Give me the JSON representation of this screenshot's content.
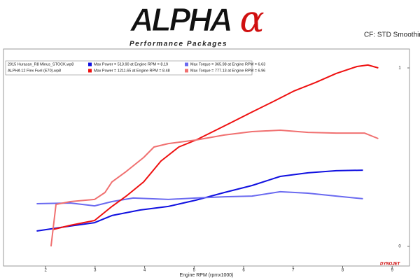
{
  "logo": {
    "text": "ALPHA",
    "symbol": "α",
    "tagline": "Performance Packages"
  },
  "note": "CF: STD Smoothin",
  "brand": "DYNOJET",
  "chart_data": {
    "type": "line",
    "x_label": "Engine RPM (rpmx1000)",
    "xlim": [
      1.15,
      9.35
    ],
    "xticks": [
      2,
      3,
      4,
      5,
      6,
      7,
      8,
      9
    ],
    "ylim": [
      -0.11,
      1.106
    ],
    "yticks": [
      0,
      1
    ],
    "runs": [
      "2015 Huracan_R8 Minus_STOCK.wp8",
      "ALPHA 12 Flex Fuel (E70).wp8"
    ],
    "series": [
      {
        "name": "Max Power = 513.90 at Engine RPM = 8.19",
        "run": 0,
        "color": "#1010e0",
        "x": [
          1.82,
          2.5,
          2.99,
          3.34,
          3.91,
          4.48,
          5.04,
          5.61,
          6.17,
          6.74,
          7.3,
          7.87,
          8.41
        ],
        "values": [
          0.086,
          0.114,
          0.133,
          0.173,
          0.204,
          0.224,
          0.259,
          0.302,
          0.341,
          0.392,
          0.412,
          0.424,
          0.427
        ]
      },
      {
        "name": "Max Torque = 365.98 at Engine RPM = 6.63",
        "run": 0,
        "color": "#6a6af0",
        "x": [
          1.82,
          2.5,
          2.99,
          3.34,
          3.77,
          4.48,
          5.04,
          5.61,
          6.17,
          6.74,
          7.3,
          7.87,
          8.41
        ],
        "values": [
          0.239,
          0.243,
          0.227,
          0.251,
          0.271,
          0.263,
          0.271,
          0.278,
          0.282,
          0.306,
          0.298,
          0.282,
          0.267
        ]
      },
      {
        "name": "Max Power = 1211.65 at Engine RPM = 8.48",
        "run": 1,
        "color": "#ee1010",
        "x": [
          2.14,
          2.5,
          2.99,
          3.34,
          3.63,
          3.98,
          4.33,
          4.69,
          5.04,
          5.32,
          5.75,
          6.17,
          6.6,
          7.02,
          7.45,
          7.87,
          8.29,
          8.51,
          8.72
        ],
        "values": [
          0.094,
          0.118,
          0.145,
          0.224,
          0.282,
          0.361,
          0.478,
          0.557,
          0.596,
          0.635,
          0.694,
          0.753,
          0.812,
          0.871,
          0.918,
          0.969,
          1.008,
          1.016,
          1.0
        ]
      },
      {
        "name": "Max Torque = 777.13 at Engine RPM = 6.96",
        "run": 1,
        "color": "#f07070",
        "x": [
          2.11,
          2.21,
          2.5,
          2.99,
          3.2,
          3.34,
          3.63,
          3.98,
          4.19,
          4.48,
          5.04,
          5.61,
          6.17,
          6.74,
          7.3,
          7.87,
          8.44,
          8.72
        ],
        "values": [
          0,
          0.235,
          0.251,
          0.263,
          0.302,
          0.361,
          0.42,
          0.498,
          0.557,
          0.576,
          0.596,
          0.624,
          0.643,
          0.651,
          0.639,
          0.635,
          0.635,
          0.604
        ]
      }
    ]
  }
}
